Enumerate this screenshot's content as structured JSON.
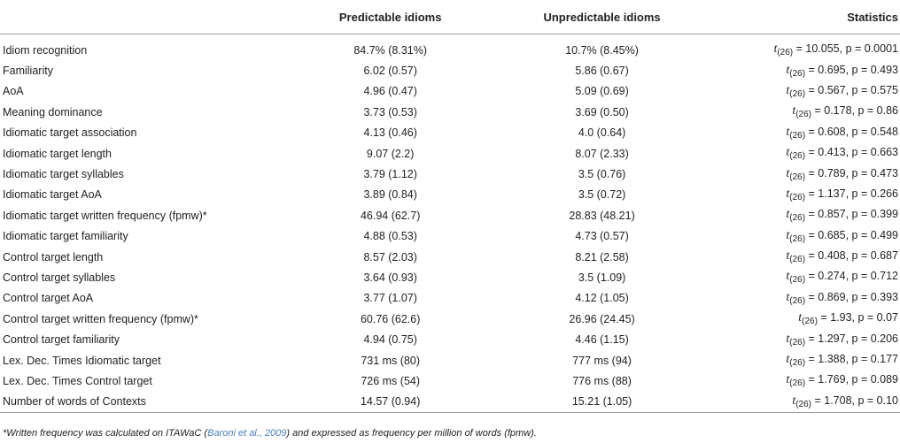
{
  "headers": {
    "col0": "",
    "col1": "Predictable idioms",
    "col2": "Unpredictable idioms",
    "col3": "Statistics"
  },
  "rows": [
    {
      "label": "Idiom recognition",
      "pred": "84.7% (8.31%)",
      "unpred": "10.7% (8.45%)",
      "t": "t",
      "df": "(26)",
      "stat": " = 10.055, p = 0.0001"
    },
    {
      "label": "Familiarity",
      "pred": "6.02 (0.57)",
      "unpred": "5.86 (0.67)",
      "t": "t",
      "df": "(26)",
      "stat": " = 0.695, p = 0.493"
    },
    {
      "label": "AoA",
      "pred": "4.96 (0.47)",
      "unpred": "5.09 (0.69)",
      "t": "t",
      "df": "(26)",
      "stat": " = 0.567, p = 0.575"
    },
    {
      "label": "Meaning dominance",
      "pred": "3.73 (0.53)",
      "unpred": "3.69 (0.50)",
      "t": "t",
      "df": "(26)",
      "stat": " = 0.178, p = 0.86"
    },
    {
      "label": "Idiomatic target association",
      "pred": "4.13 (0.46)",
      "unpred": "4.0 (0.64)",
      "t": "t",
      "df": "(26)",
      "stat": " = 0.608, p = 0.548"
    },
    {
      "label": "Idiomatic target length",
      "pred": "9.07 (2.2)",
      "unpred": "8.07 (2.33)",
      "t": "t",
      "df": "(26)",
      "stat": " = 0.413, p = 0.663"
    },
    {
      "label": "Idiomatic target syllables",
      "pred": "3.79 (1.12)",
      "unpred": "3.5 (0.76)",
      "t": "t",
      "df": "(26)",
      "stat": " = 0.789, p = 0.473"
    },
    {
      "label": "Idiomatic target AoA",
      "pred": "3.89 (0.84)",
      "unpred": "3.5 (0.72)",
      "t": "t",
      "df": "(26)",
      "stat": " = 1.137, p = 0.266"
    },
    {
      "label": "Idiomatic target written frequency (fpmw)*",
      "pred": "46.94 (62.7)",
      "unpred": "28.83 (48.21)",
      "t": "t",
      "df": "(26)",
      "stat": " = 0.857, p = 0.399"
    },
    {
      "label": "Idiomatic target familiarity",
      "pred": "4.88 (0.53)",
      "unpred": "4.73 (0.57)",
      "t": "t",
      "df": "(26)",
      "stat": " = 0.685, p = 0.499"
    },
    {
      "label": "Control target length",
      "pred": "8.57 (2.03)",
      "unpred": "8.21 (2.58)",
      "t": "t",
      "df": "(26)",
      "stat": " = 0.408, p = 0.687"
    },
    {
      "label": "Control target syllables",
      "pred": "3.64 (0.93)",
      "unpred": "3.5 (1.09)",
      "t": "t",
      "df": "(26)",
      "stat": " = 0.274, p = 0.712"
    },
    {
      "label": "Control target AoA",
      "pred": "3.77 (1.07)",
      "unpred": "4.12 (1.05)",
      "t": "t",
      "df": "(26)",
      "stat": " = 0.869, p = 0.393"
    },
    {
      "label": "Control target written frequency (fpmw)*",
      "pred": "60.76 (62.6)",
      "unpred": "26.96 (24.45)",
      "t": "t",
      "df": "(26)",
      "stat": " = 1.93, p = 0.07"
    },
    {
      "label": "Control target familiarity",
      "pred": "4.94 (0.75)",
      "unpred": "4.46 (1.15)",
      "t": "t",
      "df": "(26)",
      "stat": " = 1.297, p = 0.206"
    },
    {
      "label": "Lex. Dec. Times Idiomatic target",
      "pred": "731 ms (80)",
      "unpred": "777 ms (94)",
      "t": "t",
      "df": "(26)",
      "stat": " = 1.388, p = 0.177"
    },
    {
      "label": "Lex. Dec. Times Control target",
      "pred": "726 ms (54)",
      "unpred": "776 ms (88)",
      "t": "t",
      "df": "(26)",
      "stat": " = 1.769, p = 0.089"
    },
    {
      "label": "Number of words of Contexts",
      "pred": "14.57 (0.94)",
      "unpred": "15.21 (1.05)",
      "t": "t",
      "df": "(26)",
      "stat": " = 1.708, p = 0.10"
    }
  ],
  "footnote": {
    "pre": "*Written frequency was calculated on ITAWaC (",
    "cite": "Baroni et al., 2009",
    "post": ") and expressed as frequency per million of words (fpmw)."
  },
  "colors": {
    "text": "#222222",
    "rule": "#9c9c9c",
    "link": "#4a7fb5"
  }
}
